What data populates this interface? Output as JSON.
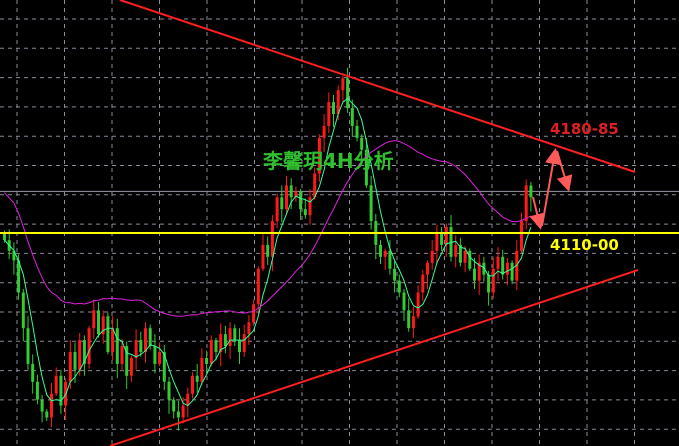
{
  "chart_data": {
    "type": "candlestick",
    "title": "李馨玥4H分析",
    "timeframe": "4H",
    "grid": true,
    "closes": [
      4104,
      4095,
      4087,
      4060,
      4030,
      4000,
      3985,
      3970,
      3960,
      3955,
      3975,
      3990,
      3965,
      3985,
      4010,
      3995,
      4020,
      4000,
      4030,
      4045,
      4025,
      4040,
      4010,
      4030,
      4000,
      4015,
      3990,
      4005,
      4020,
      4010,
      4030,
      4015,
      4000,
      4010,
      3985,
      3970,
      3960,
      3955,
      3965,
      3975,
      3990,
      3985,
      4005,
      4000,
      4020,
      4010,
      4025,
      4015,
      4030,
      4020,
      4010,
      4025,
      4035,
      4050,
      4080,
      4100,
      4090,
      4120,
      4140,
      4130,
      4150,
      4140,
      4145,
      4130,
      4125,
      4140,
      4160,
      4190,
      4200,
      4220,
      4210,
      4230,
      4240,
      4215,
      4200,
      4190,
      4180,
      4150,
      4120,
      4100,
      4090,
      4095,
      4080,
      4070,
      4060,
      4045,
      4030,
      4040,
      4060,
      4075,
      4085,
      4095,
      4110,
      4100,
      4115,
      4090,
      4100,
      4085,
      4095,
      4080,
      4070,
      4085,
      4075,
      4060,
      4080,
      4090,
      4075,
      4085,
      4070,
      4095,
      4120,
      4150,
      4140
    ],
    "moving_averages": [
      {
        "period": 5,
        "color": "#33ff99"
      },
      {
        "period": 30,
        "color": "#e020e0"
      }
    ],
    "levels": [
      {
        "label": "4180-85",
        "price": 4180,
        "color": "#e02020"
      },
      {
        "label": "4110-00",
        "price": 4110,
        "color": "#ffff00"
      }
    ],
    "reference_line_price": 4145,
    "colors": {
      "up": "#ff1a1a",
      "down": "#33cc33",
      "trendline": "#ff2020",
      "grid": "#8a8a9a",
      "arrow": "#ff5a5a"
    }
  }
}
